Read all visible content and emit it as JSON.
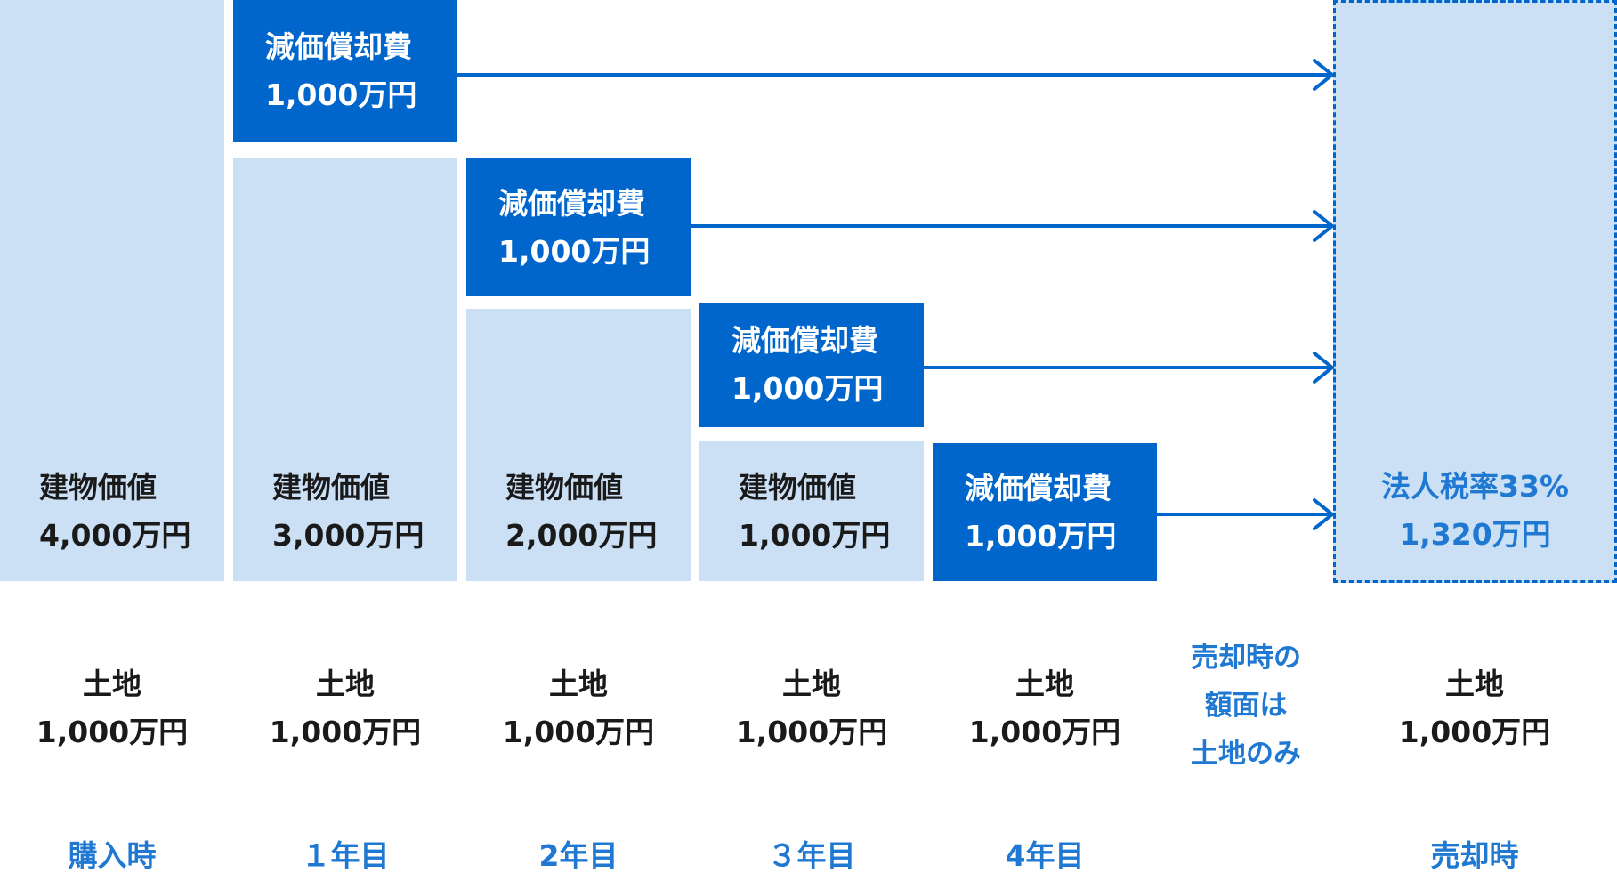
{
  "building_values": [
    {
      "label": "建物価値",
      "amount": "4,000万円"
    },
    {
      "label": "建物価値",
      "amount": "3,000万円"
    },
    {
      "label": "建物価値",
      "amount": "2,000万円"
    },
    {
      "label": "建物価値",
      "amount": "1,000万円"
    }
  ],
  "depreciation": [
    {
      "label": "減価償却費",
      "amount": "1,000万円"
    },
    {
      "label": "減価償却費",
      "amount": "1,000万円"
    },
    {
      "label": "減価償却費",
      "amount": "1,000万円"
    },
    {
      "label": "減価償却費",
      "amount": "1,000万円"
    }
  ],
  "sale_tax": {
    "label": "法人税率33%",
    "amount": "1,320万円"
  },
  "land": [
    {
      "label": "土地",
      "amount": "1,000万円"
    },
    {
      "label": "土地",
      "amount": "1,000万円"
    },
    {
      "label": "土地",
      "amount": "1,000万円"
    },
    {
      "label": "土地",
      "amount": "1,000万円"
    },
    {
      "label": "土地",
      "amount": "1,000万円"
    },
    {
      "label": "土地",
      "amount": "1,000万円"
    }
  ],
  "sale_note": {
    "line1": "売却時の",
    "line2": "額面は",
    "line3": "土地のみ"
  },
  "periods": [
    "購入時",
    "１年目",
    "2年目",
    "３年目",
    "4年目",
    "売却時"
  ],
  "colors": {
    "light": "#cce0f5",
    "dark": "#0066cc",
    "accent_text": "#1f78d1"
  }
}
